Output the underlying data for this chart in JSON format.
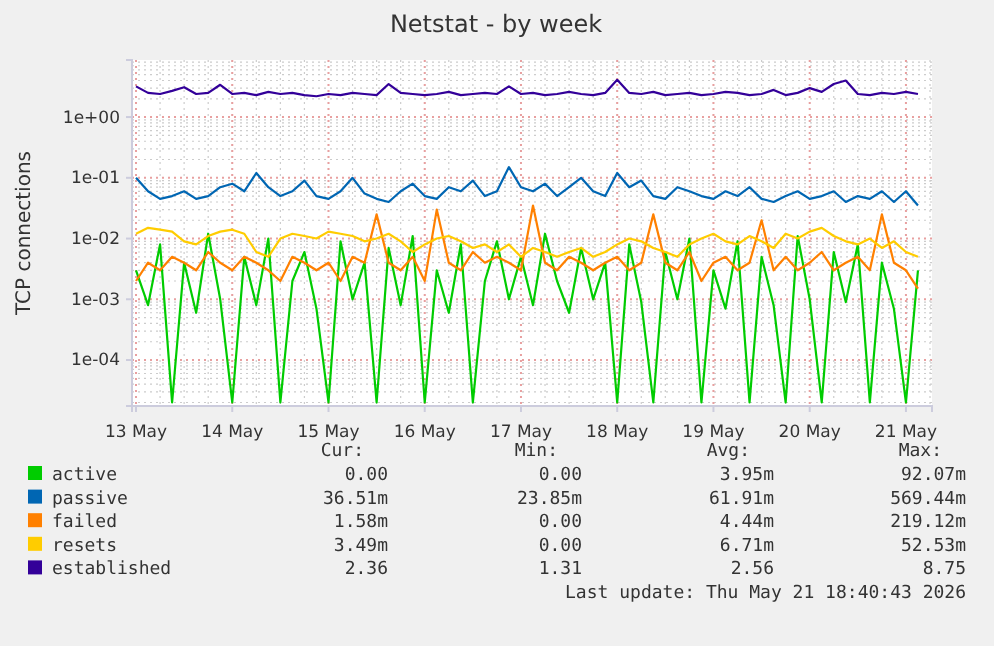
{
  "chart_data": {
    "type": "line",
    "title": "Netstat - by week",
    "ylabel": "TCP connections",
    "log": "y",
    "grid": true,
    "legend": "bottom",
    "marker": "none",
    "line_style": "solid",
    "ylim": [
      1.75e-05,
      8.7
    ],
    "yticks": [
      {
        "value": 0.0001,
        "label": "1e-04"
      },
      {
        "value": 0.001,
        "label": "1e-03"
      },
      {
        "value": 0.01,
        "label": "1e-02"
      },
      {
        "value": 0.1,
        "label": "1e-01"
      },
      {
        "value": 1,
        "label": "1e+00"
      }
    ],
    "xlim": [
      "2026-05-12T23:00",
      "2026-05-21T06:30"
    ],
    "xticks": [
      {
        "value": "2026-05-13",
        "label": "13 May"
      },
      {
        "value": "2026-05-14",
        "label": "14 May"
      },
      {
        "value": "2026-05-15",
        "label": "15 May"
      },
      {
        "value": "2026-05-16",
        "label": "16 May"
      },
      {
        "value": "2026-05-17",
        "label": "17 May"
      },
      {
        "value": "2026-05-18",
        "label": "18 May"
      },
      {
        "value": "2026-05-19",
        "label": "19 May"
      },
      {
        "value": "2026-05-20",
        "label": "20 May"
      },
      {
        "value": "2026-05-21",
        "label": "21 May"
      }
    ],
    "x": [
      "2026-05-13T00:00",
      "2026-05-13T03:00",
      "2026-05-13T06:00",
      "2026-05-13T09:00",
      "2026-05-13T12:00",
      "2026-05-13T15:00",
      "2026-05-13T18:00",
      "2026-05-13T21:00",
      "2026-05-14T00:00",
      "2026-05-14T03:00",
      "2026-05-14T06:00",
      "2026-05-14T09:00",
      "2026-05-14T12:00",
      "2026-05-14T15:00",
      "2026-05-14T18:00",
      "2026-05-14T21:00",
      "2026-05-15T00:00",
      "2026-05-15T03:00",
      "2026-05-15T06:00",
      "2026-05-15T09:00",
      "2026-05-15T12:00",
      "2026-05-15T15:00",
      "2026-05-15T18:00",
      "2026-05-15T21:00",
      "2026-05-16T00:00",
      "2026-05-16T03:00",
      "2026-05-16T06:00",
      "2026-05-16T09:00",
      "2026-05-16T12:00",
      "2026-05-16T15:00",
      "2026-05-16T18:00",
      "2026-05-16T21:00",
      "2026-05-17T00:00",
      "2026-05-17T03:00",
      "2026-05-17T06:00",
      "2026-05-17T09:00",
      "2026-05-17T12:00",
      "2026-05-17T15:00",
      "2026-05-17T18:00",
      "2026-05-17T21:00",
      "2026-05-18T00:00",
      "2026-05-18T03:00",
      "2026-05-18T06:00",
      "2026-05-18T09:00",
      "2026-05-18T12:00",
      "2026-05-18T15:00",
      "2026-05-18T18:00",
      "2026-05-18T21:00",
      "2026-05-19T00:00",
      "2026-05-19T03:00",
      "2026-05-19T06:00",
      "2026-05-19T09:00",
      "2026-05-19T12:00",
      "2026-05-19T15:00",
      "2026-05-19T18:00",
      "2026-05-19T21:00",
      "2026-05-20T00:00",
      "2026-05-20T03:00",
      "2026-05-20T06:00",
      "2026-05-20T09:00",
      "2026-05-20T12:00",
      "2026-05-20T15:00",
      "2026-05-20T18:00",
      "2026-05-20T21:00",
      "2026-05-21T00:00",
      "2026-05-21T03:00"
    ],
    "series": [
      {
        "name": "active",
        "color": "#00cc00",
        "values": [
          0.003,
          0.0008,
          0.008,
          2e-05,
          0.004,
          0.0006,
          0.012,
          0.001,
          2e-05,
          0.005,
          0.0008,
          0.01,
          2e-05,
          0.002,
          0.006,
          0.0007,
          2e-05,
          0.009,
          0.001,
          0.004,
          2e-05,
          0.007,
          0.0008,
          0.011,
          2e-05,
          0.003,
          0.0006,
          0.008,
          2e-05,
          0.002,
          0.009,
          0.001,
          0.005,
          0.0008,
          0.012,
          0.002,
          0.0006,
          0.007,
          0.001,
          0.004,
          2e-05,
          0.008,
          0.0009,
          2e-05,
          0.006,
          0.001,
          0.01,
          2e-05,
          0.003,
          0.0007,
          0.009,
          2e-05,
          0.005,
          0.0008,
          2e-05,
          0.011,
          0.001,
          2e-05,
          0.006,
          0.0009,
          0.008,
          2e-05,
          0.004,
          0.0007,
          2e-05,
          0.003
        ]
      },
      {
        "name": "passive",
        "color": "#0066b3",
        "values": [
          0.1,
          0.06,
          0.045,
          0.05,
          0.06,
          0.045,
          0.05,
          0.07,
          0.08,
          0.06,
          0.12,
          0.07,
          0.05,
          0.06,
          0.09,
          0.05,
          0.045,
          0.06,
          0.1,
          0.055,
          0.045,
          0.04,
          0.06,
          0.08,
          0.05,
          0.045,
          0.07,
          0.06,
          0.09,
          0.05,
          0.06,
          0.15,
          0.07,
          0.06,
          0.08,
          0.05,
          0.07,
          0.1,
          0.06,
          0.05,
          0.12,
          0.07,
          0.09,
          0.05,
          0.045,
          0.07,
          0.06,
          0.05,
          0.045,
          0.06,
          0.05,
          0.07,
          0.045,
          0.04,
          0.05,
          0.06,
          0.045,
          0.05,
          0.06,
          0.04,
          0.05,
          0.045,
          0.06,
          0.04,
          0.06,
          0.035
        ]
      },
      {
        "name": "failed",
        "color": "#ff8000",
        "values": [
          0.002,
          0.004,
          0.003,
          0.005,
          0.004,
          0.003,
          0.006,
          0.004,
          0.003,
          0.005,
          0.004,
          0.003,
          0.002,
          0.005,
          0.004,
          0.003,
          0.004,
          0.002,
          0.005,
          0.004,
          0.025,
          0.004,
          0.003,
          0.005,
          0.002,
          0.03,
          0.004,
          0.003,
          0.006,
          0.004,
          0.005,
          0.004,
          0.003,
          0.035,
          0.004,
          0.003,
          0.005,
          0.004,
          0.003,
          0.004,
          0.005,
          0.003,
          0.004,
          0.025,
          0.004,
          0.003,
          0.006,
          0.002,
          0.004,
          0.005,
          0.003,
          0.004,
          0.02,
          0.003,
          0.005,
          0.003,
          0.004,
          0.006,
          0.003,
          0.004,
          0.005,
          0.003,
          0.025,
          0.004,
          0.003,
          0.0015
        ]
      },
      {
        "name": "resets",
        "color": "#ffcc00",
        "values": [
          0.012,
          0.015,
          0.014,
          0.013,
          0.009,
          0.008,
          0.011,
          0.013,
          0.014,
          0.012,
          0.006,
          0.005,
          0.01,
          0.012,
          0.011,
          0.01,
          0.013,
          0.012,
          0.011,
          0.009,
          0.01,
          0.012,
          0.009,
          0.006,
          0.008,
          0.01,
          0.011,
          0.009,
          0.007,
          0.008,
          0.006,
          0.008,
          0.005,
          0.007,
          0.006,
          0.005,
          0.006,
          0.007,
          0.005,
          0.006,
          0.008,
          0.01,
          0.009,
          0.007,
          0.006,
          0.005,
          0.008,
          0.01,
          0.012,
          0.009,
          0.008,
          0.011,
          0.009,
          0.007,
          0.012,
          0.01,
          0.013,
          0.015,
          0.011,
          0.009,
          0.008,
          0.01,
          0.007,
          0.009,
          0.006,
          0.005
        ]
      },
      {
        "name": "established",
        "color": "#330099",
        "values": [
          3.2,
          2.5,
          2.4,
          2.7,
          3.1,
          2.4,
          2.5,
          3.4,
          2.4,
          2.5,
          2.3,
          2.6,
          2.4,
          2.5,
          2.3,
          2.2,
          2.4,
          2.3,
          2.5,
          2.4,
          2.3,
          3.5,
          2.5,
          2.4,
          2.3,
          2.4,
          2.6,
          2.3,
          2.4,
          2.5,
          2.4,
          3.2,
          2.4,
          2.5,
          2.3,
          2.4,
          2.6,
          2.4,
          2.3,
          2.5,
          4.1,
          2.5,
          2.4,
          2.6,
          2.3,
          2.4,
          2.5,
          2.3,
          2.4,
          2.6,
          2.5,
          2.3,
          2.4,
          2.8,
          2.3,
          2.5,
          3.0,
          2.6,
          3.5,
          4.0,
          2.4,
          2.3,
          2.5,
          2.4,
          2.6,
          2.4
        ]
      }
    ],
    "annotations": [
      "Cur:",
      "Min:",
      "Avg:",
      "Max:",
      "0.00",
      "0.00",
      "3.95m",
      "92.07m",
      "36.51m",
      "23.85m",
      "61.91m",
      "569.44m",
      "1.58m",
      "0.00",
      "4.44m",
      "219.12m",
      "3.49m",
      "0.00",
      "6.71m",
      "52.53m",
      "2.36",
      "1.31",
      "2.56",
      "8.75",
      "Last update: Thu May 21 18:40:43 2026"
    ]
  }
}
